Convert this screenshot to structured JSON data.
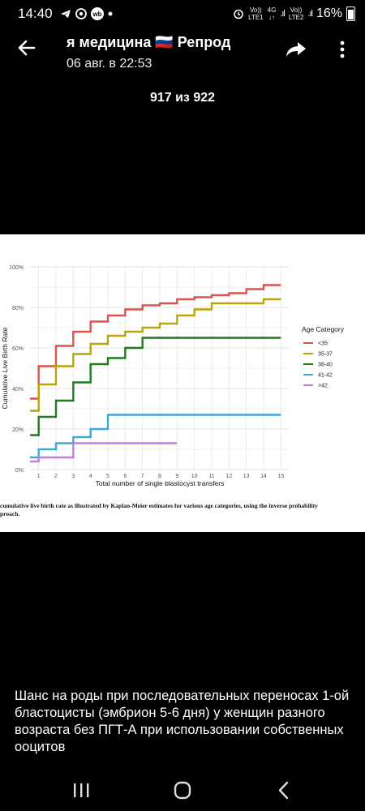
{
  "status_bar": {
    "time": "14:40",
    "wb": "wb",
    "sim1_top": "Vo))",
    "sim1_bottom": "LTE1",
    "net_top": "4G",
    "net_bottom": "↓↑",
    "sim2_top": "Vo))",
    "sim2_bottom": "LTE2",
    "battery_percent": "16%"
  },
  "header": {
    "title": "я медицина 🇷🇺  Репрод",
    "subtitle": "06 авг. в 22:53"
  },
  "counter": "917 из 922",
  "photo_caption": "cumulative live birth rate as illustrated by Kaplan-Meier estimates for various age categories, using the inverse probability\nproach.",
  "chart_data": {
    "type": "line",
    "step": true,
    "xlabel": "Total number of single blastocyst transfers",
    "ylabel": "Cumulative Live Birth Rate",
    "x_ticks": [
      1,
      2,
      3,
      4,
      5,
      6,
      7,
      8,
      9,
      10,
      11,
      12,
      13,
      14,
      15
    ],
    "y_ticks": [
      "0%",
      "20%",
      "40%",
      "60%",
      "80%",
      "100%"
    ],
    "xlim": [
      0.5,
      15.5
    ],
    "ylim": [
      0,
      100
    ],
    "grid": true,
    "legend_title": "Age Category",
    "legend_position": "right",
    "series": [
      {
        "name": "<35",
        "color": "#d9534f",
        "x": [
          1,
          2,
          3,
          4,
          5,
          6,
          7,
          8,
          9,
          10,
          11,
          12,
          13,
          14,
          15
        ],
        "values": [
          35,
          51,
          61,
          68,
          73,
          76,
          79,
          81,
          82,
          84,
          85,
          86,
          87,
          89,
          91
        ]
      },
      {
        "name": "35-37",
        "color": "#b8a50a",
        "x": [
          1,
          2,
          3,
          4,
          5,
          6,
          7,
          8,
          9,
          10,
          11,
          12,
          13,
          14,
          15
        ],
        "values": [
          29,
          42,
          51,
          57,
          62,
          66,
          68,
          70,
          72,
          76,
          79,
          82,
          82,
          82,
          84
        ]
      },
      {
        "name": "38-40",
        "color": "#1e7b1e",
        "x": [
          1,
          2,
          3,
          4,
          5,
          6,
          7,
          8,
          9,
          10,
          11,
          12,
          13,
          14,
          15
        ],
        "values": [
          17,
          26,
          34,
          43,
          52,
          55,
          60,
          65,
          65,
          65,
          65,
          65,
          65,
          65,
          65
        ]
      },
      {
        "name": "41-42",
        "color": "#3fa9d6",
        "x": [
          1,
          2,
          3,
          4,
          5,
          6,
          7,
          8,
          9,
          10,
          11,
          12,
          13,
          14,
          15
        ],
        "values": [
          6,
          10,
          13,
          16,
          20,
          27,
          27,
          27,
          27,
          27,
          27,
          27,
          27,
          27,
          27
        ]
      },
      {
        "name": ">42",
        "color": "#c77be0",
        "x": [
          1,
          2,
          3,
          4,
          5,
          6,
          7,
          8,
          9
        ],
        "values": [
          4,
          6,
          6,
          13,
          13,
          13,
          13,
          13,
          13
        ]
      }
    ]
  },
  "description": "Шанс на роды при последовательных переносах 1-ой бластоцисты (эмбрион 5-6 дня) у женщин разного возраста без ПГТ-А при использовании собственных ооцитов",
  "icons": {
    "back": "arrow-left-icon",
    "share": "share-icon",
    "more": "more-vertical-icon",
    "nav_recent": "recent-apps-icon",
    "nav_home": "home-icon",
    "nav_back": "nav-back-icon"
  }
}
